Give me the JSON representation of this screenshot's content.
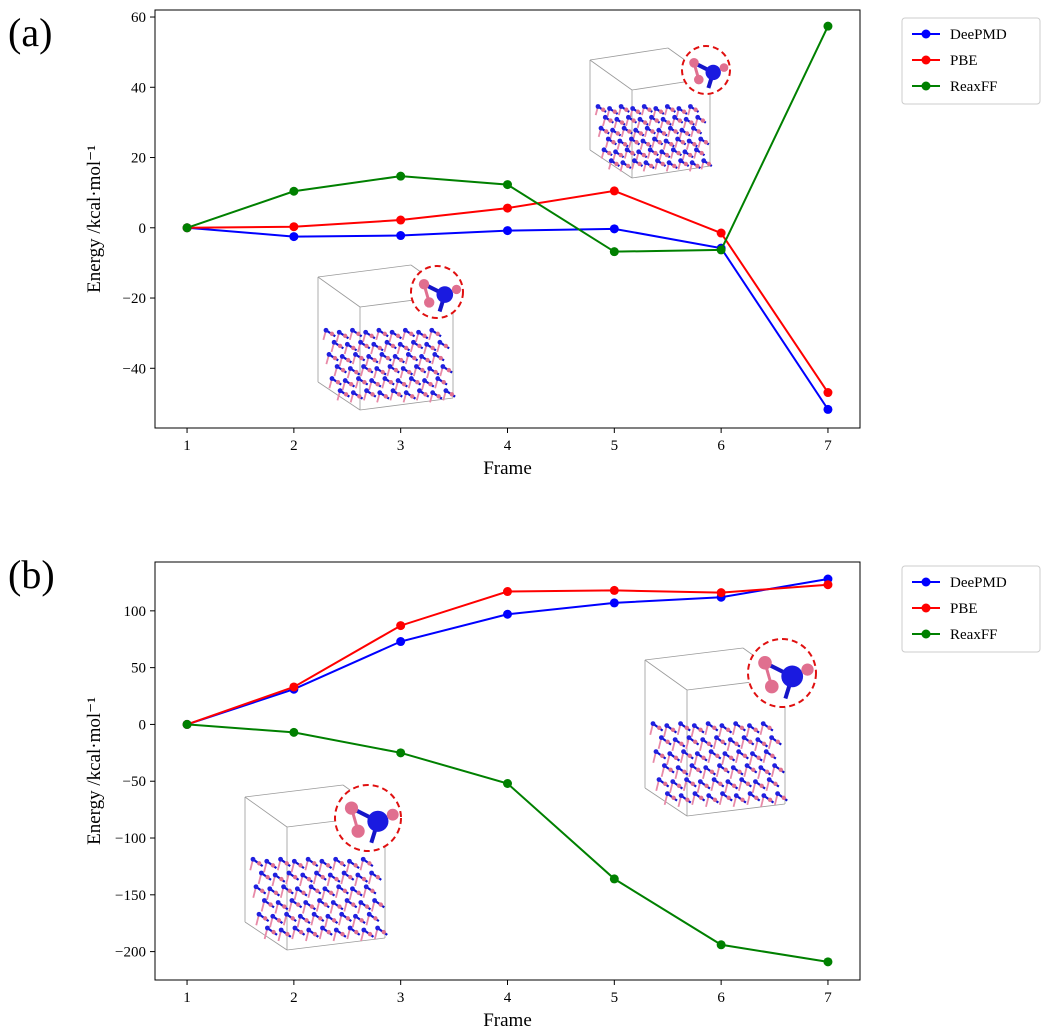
{
  "chart_data": [
    {
      "type": "line",
      "panel_label": "(a)",
      "xlabel": "Frame",
      "ylabel": "Energy /kcal·mol⁻¹",
      "x": [
        1,
        2,
        3,
        4,
        5,
        6,
        7
      ],
      "xlim": [
        0.7,
        7.3
      ],
      "ylim": [
        -57,
        62
      ],
      "yticks": [
        -40,
        -20,
        0,
        20,
        40,
        60
      ],
      "ytick_labels": [
        "−40",
        "−20",
        "0",
        "20",
        "40",
        "60"
      ],
      "legend_position": "outside-top-right",
      "series": [
        {
          "name": "DeePMD",
          "color": "#0000ff",
          "values": [
            0,
            -2.5,
            -2.2,
            -0.8,
            -0.3,
            -5.8,
            -51.7
          ]
        },
        {
          "name": "PBE",
          "color": "#ff0000",
          "values": [
            0,
            0.3,
            2.2,
            5.6,
            10.5,
            -1.5,
            -46.9
          ]
        },
        {
          "name": "ReaxFF",
          "color": "#008000",
          "values": [
            0,
            10.4,
            14.7,
            12.3,
            -6.8,
            -6.3,
            57.4
          ]
        }
      ]
    },
    {
      "type": "line",
      "panel_label": "(b)",
      "xlabel": "Frame",
      "ylabel": "Energy /kcal·mol⁻¹",
      "x": [
        1,
        2,
        3,
        4,
        5,
        6,
        7
      ],
      "xlim": [
        0.7,
        7.3
      ],
      "ylim": [
        -225,
        143
      ],
      "yticks": [
        -200,
        -150,
        -100,
        -50,
        0,
        50,
        100
      ],
      "ytick_labels": [
        "−200",
        "−150",
        "−100",
        "−50",
        "0",
        "50",
        "100"
      ],
      "legend_position": "outside-top-right",
      "series": [
        {
          "name": "DeePMD",
          "color": "#0000ff",
          "values": [
            0,
            31,
            73,
            97,
            107,
            112,
            128
          ]
        },
        {
          "name": "PBE",
          "color": "#ff0000",
          "values": [
            0,
            33,
            87,
            117,
            118,
            116,
            123
          ]
        },
        {
          "name": "ReaxFF",
          "color": "#008000",
          "values": [
            0,
            -7,
            -25,
            -52,
            -136,
            -194,
            -209
          ]
        }
      ]
    }
  ]
}
